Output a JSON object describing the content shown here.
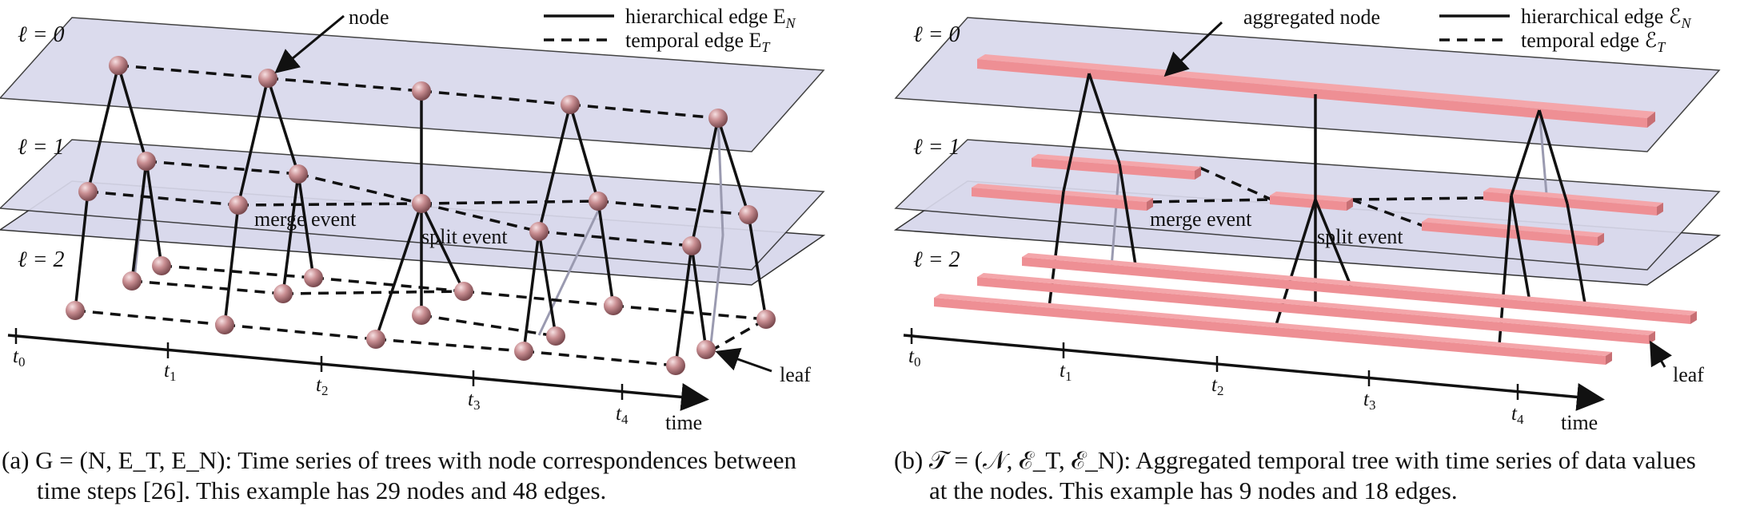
{
  "left": {
    "level_labels": [
      "ℓ = 0",
      "ℓ = 1",
      "ℓ = 2"
    ],
    "callout_node": "node",
    "callout_leaf": "leaf",
    "legend_hier": "hierarchical edge E",
    "legend_hier_sub": "N",
    "legend_temp": "temporal edge E",
    "legend_temp_sub": "T",
    "event_merge": "merge event",
    "event_split": "split event",
    "time_ticks": [
      "t",
      "t",
      "t",
      "t",
      "t"
    ],
    "time_tick_subs": [
      "0",
      "1",
      "2",
      "3",
      "4"
    ],
    "axis_label": "time",
    "caption_line1": "(a) G = (N, E_T, E_N): Time series of trees with node correspondences between",
    "caption_line2": "time steps [26]. This example has 29 nodes and 48 edges."
  },
  "right": {
    "level_labels": [
      "ℓ = 0",
      "ℓ = 1",
      "ℓ = 2"
    ],
    "callout_node": "aggregated node",
    "callout_leaf": "leaf",
    "legend_hier": "hierarchical edge ℰ",
    "legend_hier_sub": "N",
    "legend_temp": "temporal edge ℰ",
    "legend_temp_sub": "T",
    "event_merge": "merge event",
    "event_split": "split event",
    "time_ticks": [
      "t",
      "t",
      "t",
      "t",
      "t"
    ],
    "time_tick_subs": [
      "0",
      "1",
      "2",
      "3",
      "4"
    ],
    "axis_label": "time",
    "caption_line1": "(b) 𝒯 = (𝒩, ℰ_T, ℰ_N): Aggregated temporal tree with time series of data values",
    "caption_line2": "at the nodes. This example has 9 nodes and 18 edges."
  },
  "colors": {
    "plane_fill": "#d9d9ec",
    "plane_stroke": "#333333",
    "node_fill": "#c98e92",
    "bar_fill": "#ee8f94",
    "bar_dark": "#c86f74",
    "edge": "#111111",
    "edge_hidden": "#9a9ab0"
  }
}
